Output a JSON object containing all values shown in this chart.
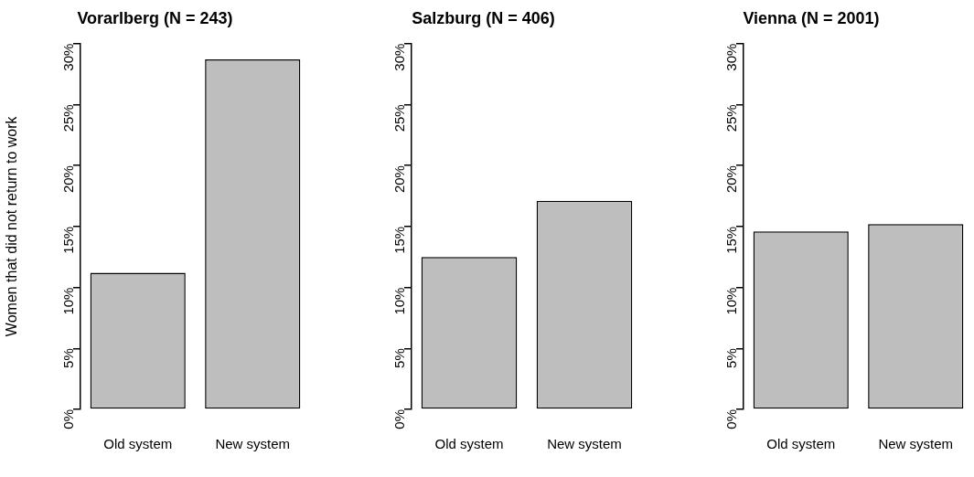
{
  "chart_data": [
    {
      "type": "bar",
      "title": "Vorarlberg (N = 243)",
      "ylabel": "Women that did not return to work",
      "categories": [
        "Old system",
        "New system"
      ],
      "values": [
        11.2,
        28.7
      ],
      "color": "#bebebe",
      "ylim": [
        0,
        30
      ],
      "yticks": [
        {
          "value": 0,
          "label": "0%"
        },
        {
          "value": 5,
          "label": "5%"
        },
        {
          "value": 10,
          "label": "10%"
        },
        {
          "value": 15,
          "label": "15%"
        },
        {
          "value": 20,
          "label": "20%"
        },
        {
          "value": 25,
          "label": "25%"
        },
        {
          "value": 30,
          "label": "30%"
        }
      ],
      "grid": false,
      "legend": false
    },
    {
      "type": "bar",
      "title": "Salzburg (N = 406)",
      "categories": [
        "Old system",
        "New system"
      ],
      "values": [
        12.5,
        17.1
      ],
      "color": "#bebebe",
      "ylim": [
        0,
        30
      ],
      "yticks": [
        {
          "value": 0,
          "label": "0%"
        },
        {
          "value": 5,
          "label": "5%"
        },
        {
          "value": 10,
          "label": "10%"
        },
        {
          "value": 15,
          "label": "15%"
        },
        {
          "value": 20,
          "label": "20%"
        },
        {
          "value": 25,
          "label": "25%"
        },
        {
          "value": 30,
          "label": "30%"
        }
      ],
      "grid": false,
      "legend": false
    },
    {
      "type": "bar",
      "title": "Vienna (N = 2001)",
      "categories": [
        "Old system",
        "New system"
      ],
      "values": [
        14.6,
        15.2
      ],
      "color": "#bebebe",
      "ylim": [
        0,
        30
      ],
      "yticks": [
        {
          "value": 0,
          "label": "0%"
        },
        {
          "value": 5,
          "label": "5%"
        },
        {
          "value": 10,
          "label": "10%"
        },
        {
          "value": 15,
          "label": "15%"
        },
        {
          "value": 20,
          "label": "20%"
        },
        {
          "value": 25,
          "label": "25%"
        },
        {
          "value": 30,
          "label": "30%"
        }
      ],
      "grid": false,
      "legend": false
    }
  ]
}
